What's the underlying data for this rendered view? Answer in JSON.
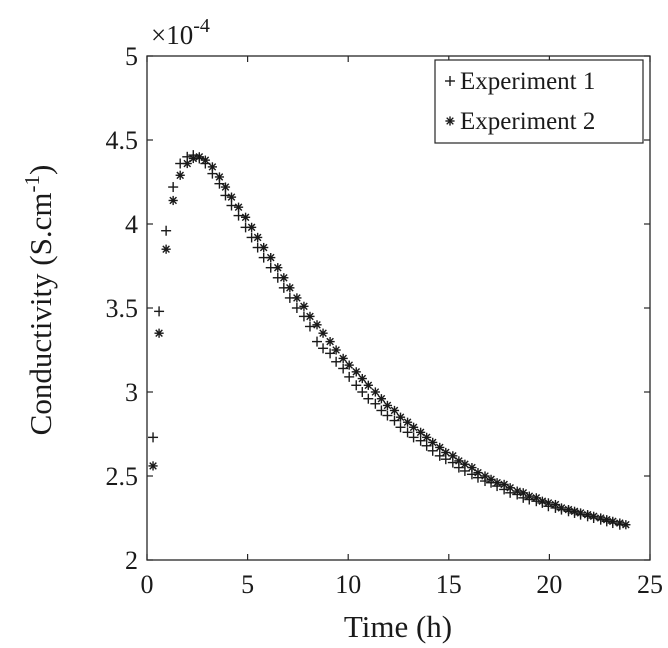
{
  "chart_data": {
    "type": "scatter",
    "title": "",
    "xlabel": "Time (h)",
    "ylabel_main": "Conductivity (S.cm",
    "ylabel_sup": "-1",
    "ylabel_close": ")",
    "y_multiplier_base": "×10",
    "y_multiplier_exp": "-4",
    "xlim": [
      0,
      25
    ],
    "ylim": [
      2,
      5
    ],
    "xticks": [
      0,
      5,
      10,
      15,
      20,
      25
    ],
    "xtick_labels": [
      "0",
      "5",
      "10",
      "15",
      "20",
      "25"
    ],
    "yticks": [
      2,
      2.5,
      3,
      3.5,
      4,
      4.5,
      5
    ],
    "ytick_labels": [
      "2",
      "2.5",
      "3",
      "3.5",
      "4",
      "4.5",
      "5"
    ],
    "grid": false,
    "legend_position": "top-right",
    "marker_color": "#1a1a1a",
    "series": [
      {
        "name": "Experiment 1",
        "marker": "plus",
        "x": [
          0.3,
          0.6,
          0.95,
          1.3,
          1.65,
          2.0,
          2.3,
          2.6,
          2.9,
          3.25,
          3.6,
          3.9,
          4.2,
          4.55,
          4.9,
          5.2,
          5.5,
          5.8,
          6.15,
          6.5,
          6.8,
          7.1,
          7.45,
          7.8,
          8.1,
          8.45,
          8.75,
          9.1,
          9.4,
          9.75,
          10.05,
          10.4,
          10.7,
          11.0,
          11.35,
          11.65,
          11.95,
          12.3,
          12.6,
          12.95,
          13.25,
          13.6,
          13.9,
          14.2,
          14.55,
          14.85,
          15.2,
          15.5,
          15.8,
          16.15,
          16.45,
          16.8,
          17.1,
          17.4,
          17.75,
          18.05,
          18.4,
          18.7,
          19.0,
          19.35,
          19.65,
          19.95,
          20.3,
          20.6,
          20.95,
          21.25,
          21.55,
          21.9,
          22.2,
          22.55,
          22.85,
          23.15,
          23.5
        ],
        "y": [
          2.73,
          3.48,
          3.96,
          4.22,
          4.36,
          4.4,
          4.41,
          4.39,
          4.36,
          4.3,
          4.24,
          4.17,
          4.11,
          4.05,
          3.98,
          3.92,
          3.86,
          3.8,
          3.74,
          3.68,
          3.62,
          3.56,
          3.5,
          3.45,
          3.39,
          3.3,
          3.26,
          3.23,
          3.18,
          3.14,
          3.09,
          3.04,
          3.0,
          2.96,
          2.93,
          2.89,
          2.86,
          2.83,
          2.79,
          2.76,
          2.73,
          2.71,
          2.68,
          2.65,
          2.62,
          2.6,
          2.58,
          2.55,
          2.53,
          2.51,
          2.49,
          2.47,
          2.46,
          2.44,
          2.42,
          2.4,
          2.39,
          2.37,
          2.36,
          2.35,
          2.34,
          2.32,
          2.31,
          2.3,
          2.29,
          2.28,
          2.27,
          2.26,
          2.25,
          2.24,
          2.23,
          2.22,
          2.21
        ]
      },
      {
        "name": "Experiment 2",
        "marker": "asterisk",
        "x": [
          0.3,
          0.6,
          0.95,
          1.3,
          1.65,
          2.0,
          2.3,
          2.6,
          2.9,
          3.25,
          3.6,
          3.9,
          4.2,
          4.55,
          4.9,
          5.2,
          5.5,
          5.8,
          6.15,
          6.5,
          6.8,
          7.1,
          7.45,
          7.8,
          8.1,
          8.45,
          8.75,
          9.1,
          9.4,
          9.75,
          10.05,
          10.4,
          10.7,
          11.0,
          11.35,
          11.65,
          11.95,
          12.3,
          12.6,
          12.95,
          13.25,
          13.6,
          13.9,
          14.2,
          14.55,
          14.85,
          15.2,
          15.5,
          15.8,
          16.15,
          16.45,
          16.8,
          17.1,
          17.4,
          17.75,
          18.05,
          18.4,
          18.7,
          19.0,
          19.35,
          19.65,
          19.95,
          20.3,
          20.6,
          20.95,
          21.25,
          21.55,
          21.9,
          22.2,
          22.55,
          22.85,
          23.15,
          23.5,
          23.8
        ],
        "y": [
          2.56,
          3.35,
          3.85,
          4.14,
          4.29,
          4.36,
          4.39,
          4.4,
          4.38,
          4.34,
          4.28,
          4.22,
          4.16,
          4.1,
          4.04,
          3.98,
          3.92,
          3.86,
          3.8,
          3.74,
          3.68,
          3.62,
          3.56,
          3.51,
          3.45,
          3.4,
          3.35,
          3.3,
          3.25,
          3.2,
          3.16,
          3.12,
          3.08,
          3.04,
          3.0,
          2.96,
          2.92,
          2.89,
          2.85,
          2.82,
          2.79,
          2.76,
          2.73,
          2.7,
          2.67,
          2.64,
          2.62,
          2.59,
          2.57,
          2.55,
          2.52,
          2.5,
          2.48,
          2.46,
          2.45,
          2.43,
          2.41,
          2.4,
          2.38,
          2.37,
          2.35,
          2.34,
          2.33,
          2.31,
          2.3,
          2.29,
          2.28,
          2.27,
          2.26,
          2.25,
          2.24,
          2.23,
          2.22,
          2.21
        ]
      }
    ]
  }
}
